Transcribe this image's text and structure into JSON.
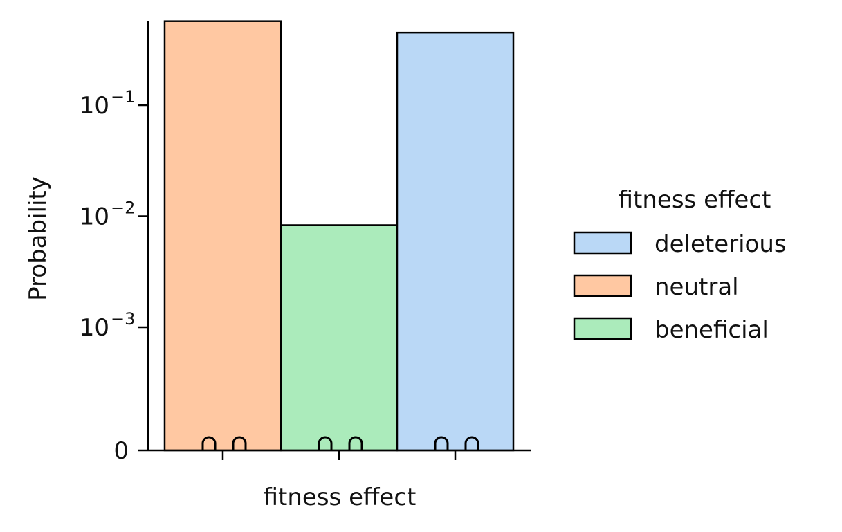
{
  "chart_data": {
    "type": "bar",
    "xlabel": "fitness effect",
    "ylabel": "Probability",
    "yscale": "symlog",
    "categories": [
      "neutral",
      "beneficial",
      "deleterious"
    ],
    "values": [
      0.57,
      0.0083,
      0.45
    ],
    "colors": {
      "deleterious": "#bad8f6",
      "neutral": "#ffc8a2",
      "beneficial": "#abebbb"
    },
    "y_ticks": [
      {
        "value": 0,
        "base": "0",
        "exp": ""
      },
      {
        "value": 0.001,
        "base": "10",
        "exp": "−3"
      },
      {
        "value": 0.01,
        "base": "10",
        "exp": "−2"
      },
      {
        "value": 0.1,
        "base": "10",
        "exp": "−1"
      }
    ],
    "legend": {
      "title": "fitness effect",
      "placement": "right",
      "entries": [
        {
          "label": "deleterious",
          "color": "#bad8f6"
        },
        {
          "label": "neutral",
          "color": "#ffc8a2"
        },
        {
          "label": "beneficial",
          "color": "#abebbb"
        }
      ]
    },
    "grid": false
  }
}
